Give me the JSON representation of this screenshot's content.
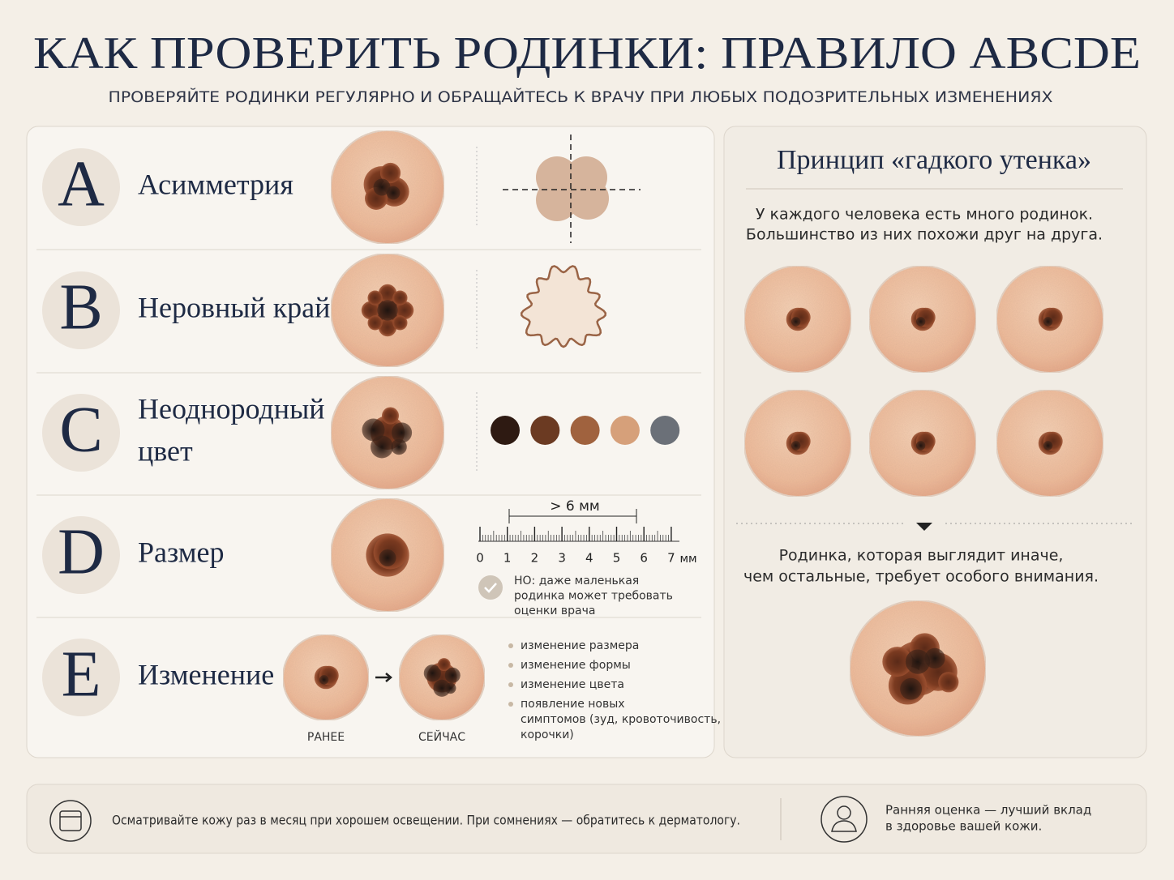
{
  "header": {
    "title": "КАК ПРОВЕРИТЬ РОДИНКИ: ПРАВИЛО ABCDE",
    "subtitle": "ПРОВЕРЯЙТЕ РОДИНКИ РЕГУЛЯРНО И ОБРАЩАЙТЕСЬ К ВРАЧУ ПРИ ЛЮБЫХ ПОДОЗРИТЕЛЬНЫХ ИЗМЕНЕНИЯХ"
  },
  "rules": [
    {
      "letter": "A",
      "name": [
        "Асимметрия"
      ]
    },
    {
      "letter": "B",
      "name": [
        "Неровный край"
      ]
    },
    {
      "letter": "C",
      "name": [
        "Неоднородный",
        "цвет"
      ]
    },
    {
      "letter": "D",
      "name": [
        "Размер"
      ],
      "ruler": {
        "label": "> 6 мм",
        "ticks": [
          0,
          1,
          2,
          3,
          4,
          5,
          6,
          7
        ],
        "unit": "мм"
      },
      "note": [
        "НО: даже маленькая",
        "родинка может требовать",
        "оценки врача"
      ]
    },
    {
      "letter": "E",
      "name": [
        "Изменение"
      ],
      "before": "РАНЕЕ",
      "after": "СЕЙЧАС",
      "changes": [
        [
          "изменение размера"
        ],
        [
          "изменение формы"
        ],
        [
          "изменение цвета"
        ],
        [
          "появление новых",
          "симптомов (зуд, кровоточивость,",
          "корочки)"
        ]
      ]
    }
  ],
  "ugly_duckling": {
    "title": "Принцип «гадкого утенка»",
    "intro": [
      "У каждого человека есть много родинок.",
      "Большинство из них похожи друг на друга."
    ],
    "conclusion": [
      "Родинка, которая выглядит иначе,",
      "чем остальные, требует особого внимания."
    ]
  },
  "footer": {
    "tip": "Осматривайте кожу раз в месяц при хорошем освещении. При сомнениях — обратитесь к дерматологу.",
    "motto": [
      "Ранняя оценка — лучший вклад",
      "в здоровье вашей кожи."
    ]
  }
}
